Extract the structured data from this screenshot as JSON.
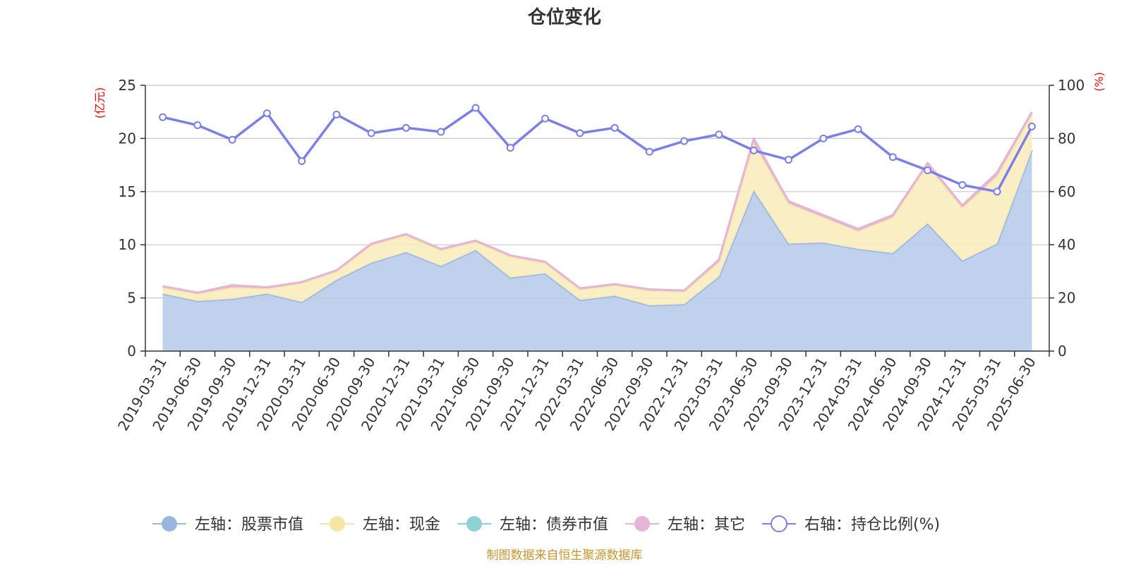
{
  "chart_data": {
    "type": "area",
    "title": "仓位变化",
    "y_left_unit": "(亿元)",
    "y_right_unit": "(%)",
    "y_left_range": [
      0,
      25
    ],
    "y_left_ticks": [
      "0",
      "5",
      "10",
      "15",
      "20",
      "25"
    ],
    "y_right_range": [
      0,
      100
    ],
    "y_right_ticks": [
      "0",
      "20",
      "40",
      "60",
      "80",
      "100"
    ],
    "grid": true,
    "legend_position": "bottom",
    "categories": [
      "2019-03-31",
      "2019-06-30",
      "2019-09-30",
      "2019-12-31",
      "2020-03-31",
      "2020-06-30",
      "2020-09-30",
      "2020-12-31",
      "2021-03-31",
      "2021-06-30",
      "2021-09-30",
      "2021-12-31",
      "2022-03-31",
      "2022-06-30",
      "2022-09-30",
      "2022-12-31",
      "2023-03-31",
      "2023-06-30",
      "2023-09-30",
      "2023-12-31",
      "2024-03-31",
      "2024-06-30",
      "2024-09-30",
      "2024-12-31",
      "2025-03-31",
      "2025-06-30"
    ],
    "series": [
      {
        "name": "左轴：股票市值",
        "axis": "left",
        "type": "area",
        "color": "#9ab5e0",
        "fill": "#b8cceb",
        "values": [
          5.4,
          4.7,
          4.9,
          5.4,
          4.6,
          6.7,
          8.3,
          9.3,
          8.0,
          9.5,
          6.9,
          7.3,
          4.8,
          5.2,
          4.3,
          4.4,
          7.0,
          15.1,
          10.1,
          10.2,
          9.6,
          9.2,
          12.0,
          8.5,
          10.1,
          18.9
        ]
      },
      {
        "name": "左轴：现金",
        "axis": "left",
        "type": "area",
        "color": "#f5e6a3",
        "fill": "#f9edbe",
        "values": [
          0.6,
          0.7,
          1.1,
          0.5,
          1.8,
          0.8,
          1.7,
          1.6,
          1.5,
          0.8,
          2.0,
          1.0,
          1.0,
          1.0,
          1.4,
          1.2,
          1.4,
          4.5,
          3.8,
          2.4,
          1.7,
          3.4,
          5.5,
          5.0,
          6.4,
          3.4
        ]
      },
      {
        "name": "左轴：债券市值",
        "axis": "left",
        "type": "area",
        "color": "#8fd0d0",
        "fill": "#8fd0d0",
        "values": [
          0,
          0,
          0,
          0,
          0,
          0,
          0,
          0,
          0,
          0,
          0,
          0,
          0,
          0,
          0,
          0,
          0,
          0,
          0,
          0,
          0,
          0,
          0,
          0,
          0,
          0
        ]
      },
      {
        "name": "左轴：其它",
        "axis": "left",
        "type": "area",
        "color": "#e6b3d9",
        "fill": "#e6b3d9",
        "values": [
          0.1,
          0.1,
          0.2,
          0.1,
          0.1,
          0.1,
          0.1,
          0.1,
          0.1,
          0.1,
          0.1,
          0.1,
          0.1,
          0.1,
          0.1,
          0.1,
          0.2,
          0.4,
          0.2,
          0.2,
          0.2,
          0.2,
          0.2,
          0.2,
          0.3,
          0.2
        ]
      },
      {
        "name": "右轴：持仓比例(%)",
        "axis": "right",
        "type": "line",
        "color": "#7b7fea",
        "values": [
          88,
          85,
          79.5,
          89.5,
          71.5,
          89,
          82,
          84,
          82.5,
          91.5,
          76.5,
          87.5,
          82,
          84,
          75,
          79,
          81.5,
          75.5,
          72,
          80,
          83.5,
          73,
          68,
          62.5,
          60,
          84.5
        ]
      }
    ]
  },
  "source_note": "制图数据来自恒生聚源数据库"
}
